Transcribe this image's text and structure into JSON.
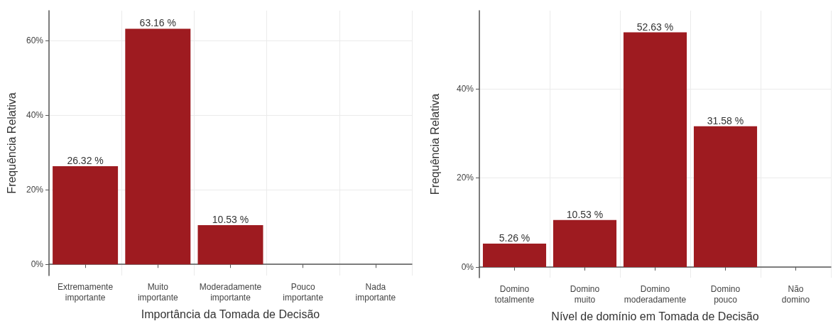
{
  "chart_data": [
    {
      "type": "bar",
      "xlabel": "Importância da Tomada de Decisão",
      "ylabel": "Frequência Relativa",
      "categories": [
        "Extremamente\nimportante",
        "Muito\nimportante",
        "Moderadamente\nimportante",
        "Pouco\nimportante",
        "Nada\nimportante"
      ],
      "values": [
        26.32,
        63.16,
        10.53,
        0,
        0
      ],
      "value_labels": [
        "26.32 %",
        "63.16 %",
        "10.53 %",
        null,
        null
      ],
      "color": "#9e1b20",
      "ylim": [
        -3,
        68
      ],
      "yticks": [
        {
          "value": 0,
          "label": "0%"
        },
        {
          "value": 20,
          "label": "20%"
        },
        {
          "value": 40,
          "label": "40%"
        },
        {
          "value": 60,
          "label": "60%"
        }
      ],
      "grid": true
    },
    {
      "type": "bar",
      "xlabel": "Nível de domínio em Tomada de Decisão",
      "ylabel": "Frequência Relativa",
      "categories": [
        "Domino\ntotalmente",
        "Domino\nmuito",
        "Domino\nmoderadamente",
        "Domino\npouco",
        "Não\ndomino"
      ],
      "values": [
        5.26,
        10.53,
        52.63,
        31.58,
        0
      ],
      "value_labels": [
        "5.26 %",
        "10.53 %",
        "52.63 %",
        "31.58 %",
        null
      ],
      "color": "#9e1b20",
      "ylim": [
        -2.4,
        57.5
      ],
      "yticks": [
        {
          "value": 0,
          "label": "0%"
        },
        {
          "value": 20,
          "label": "20%"
        },
        {
          "value": 40,
          "label": "40%"
        }
      ],
      "grid": true
    }
  ]
}
